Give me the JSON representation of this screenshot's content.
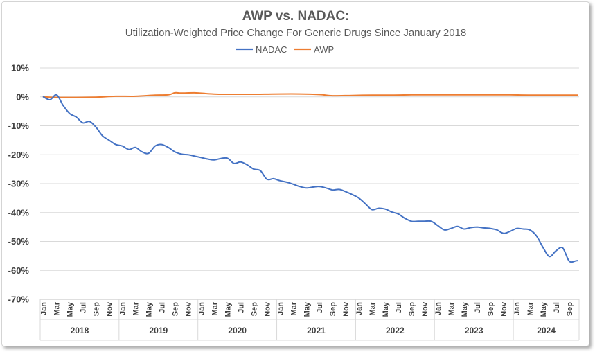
{
  "chart_data": {
    "type": "line",
    "title": "AWP vs. NADAC:",
    "subtitle": "Utilization-Weighted Price Change For Generic Drugs Since January 2018",
    "ylim": [
      -0.7,
      0.1
    ],
    "yticks": [
      0.1,
      0,
      -0.1,
      -0.2,
      -0.3,
      -0.4,
      -0.5,
      -0.6,
      -0.7
    ],
    "ytick_labels": [
      "10%",
      "0%",
      "-10%",
      "-20%",
      "-30%",
      "-40%",
      "-50%",
      "-60%",
      "-70%"
    ],
    "grid": true,
    "legend": "top",
    "month_labels": [
      "Jan",
      "Mar",
      "May",
      "Jul",
      "Sep",
      "Nov"
    ],
    "years": [
      "2018",
      "2019",
      "2020",
      "2021",
      "2022",
      "2023",
      "2024"
    ],
    "x_start": "2018-01",
    "x_end": "2024-10",
    "series": [
      {
        "name": "NADAC",
        "color": "#4472c4",
        "points": [
          [
            "2018-01",
            0.0
          ],
          [
            "2018-02",
            -0.01
          ],
          [
            "2018-03",
            0.007
          ],
          [
            "2018-04",
            -0.03
          ],
          [
            "2018-05",
            -0.058
          ],
          [
            "2018-06",
            -0.07
          ],
          [
            "2018-07",
            -0.09
          ],
          [
            "2018-08",
            -0.085
          ],
          [
            "2018-09",
            -0.105
          ],
          [
            "2018-10",
            -0.135
          ],
          [
            "2018-11",
            -0.15
          ],
          [
            "2018-12",
            -0.165
          ],
          [
            "2019-01",
            -0.17
          ],
          [
            "2019-02",
            -0.182
          ],
          [
            "2019-03",
            -0.175
          ],
          [
            "2019-04",
            -0.19
          ],
          [
            "2019-05",
            -0.195
          ],
          [
            "2019-06",
            -0.17
          ],
          [
            "2019-07",
            -0.165
          ],
          [
            "2019-08",
            -0.175
          ],
          [
            "2019-09",
            -0.19
          ],
          [
            "2019-10",
            -0.198
          ],
          [
            "2019-11",
            -0.2
          ],
          [
            "2019-12",
            -0.205
          ],
          [
            "2020-01",
            -0.21
          ],
          [
            "2020-02",
            -0.215
          ],
          [
            "2020-03",
            -0.218
          ],
          [
            "2020-04",
            -0.213
          ],
          [
            "2020-05",
            -0.212
          ],
          [
            "2020-06",
            -0.23
          ],
          [
            "2020-07",
            -0.225
          ],
          [
            "2020-08",
            -0.235
          ],
          [
            "2020-09",
            -0.25
          ],
          [
            "2020-10",
            -0.255
          ],
          [
            "2020-11",
            -0.285
          ],
          [
            "2020-12",
            -0.283
          ],
          [
            "2021-01",
            -0.29
          ],
          [
            "2021-02",
            -0.295
          ],
          [
            "2021-03",
            -0.302
          ],
          [
            "2021-04",
            -0.31
          ],
          [
            "2021-05",
            -0.315
          ],
          [
            "2021-06",
            -0.312
          ],
          [
            "2021-07",
            -0.31
          ],
          [
            "2021-08",
            -0.315
          ],
          [
            "2021-09",
            -0.322
          ],
          [
            "2021-10",
            -0.32
          ],
          [
            "2021-11",
            -0.328
          ],
          [
            "2021-12",
            -0.338
          ],
          [
            "2022-01",
            -0.35
          ],
          [
            "2022-02",
            -0.37
          ],
          [
            "2022-03",
            -0.39
          ],
          [
            "2022-04",
            -0.385
          ],
          [
            "2022-05",
            -0.388
          ],
          [
            "2022-06",
            -0.398
          ],
          [
            "2022-07",
            -0.405
          ],
          [
            "2022-08",
            -0.42
          ],
          [
            "2022-09",
            -0.43
          ],
          [
            "2022-10",
            -0.43
          ],
          [
            "2022-11",
            -0.43
          ],
          [
            "2022-12",
            -0.43
          ],
          [
            "2023-01",
            -0.445
          ],
          [
            "2023-02",
            -0.46
          ],
          [
            "2023-03",
            -0.455
          ],
          [
            "2023-04",
            -0.448
          ],
          [
            "2023-05",
            -0.457
          ],
          [
            "2023-06",
            -0.452
          ],
          [
            "2023-07",
            -0.45
          ],
          [
            "2023-08",
            -0.453
          ],
          [
            "2023-09",
            -0.455
          ],
          [
            "2023-10",
            -0.46
          ],
          [
            "2023-11",
            -0.472
          ],
          [
            "2023-12",
            -0.465
          ],
          [
            "2024-01",
            -0.455
          ],
          [
            "2024-02",
            -0.457
          ],
          [
            "2024-03",
            -0.46
          ],
          [
            "2024-04",
            -0.48
          ],
          [
            "2024-05",
            -0.52
          ],
          [
            "2024-06",
            -0.552
          ],
          [
            "2024-07",
            -0.532
          ],
          [
            "2024-08",
            -0.522
          ],
          [
            "2024-09",
            -0.568
          ],
          [
            "2024-10",
            -0.567
          ],
          [
            "2024-11",
            -0.566
          ]
        ]
      },
      {
        "name": "AWP",
        "color": "#ed7d31",
        "points": [
          [
            "2018-01",
            0.0
          ],
          [
            "2018-03",
            -0.002
          ],
          [
            "2018-06",
            -0.002
          ],
          [
            "2018-09",
            -0.001
          ],
          [
            "2018-12",
            0.002
          ],
          [
            "2019-03",
            0.002
          ],
          [
            "2019-06",
            0.006
          ],
          [
            "2019-08",
            0.007
          ],
          [
            "2019-09",
            0.014
          ],
          [
            "2019-10",
            0.013
          ],
          [
            "2019-12",
            0.014
          ],
          [
            "2020-02",
            0.011
          ],
          [
            "2020-04",
            0.009
          ],
          [
            "2020-07",
            0.009
          ],
          [
            "2020-10",
            0.009
          ],
          [
            "2021-01",
            0.01
          ],
          [
            "2021-04",
            0.01
          ],
          [
            "2021-07",
            0.008
          ],
          [
            "2021-09",
            0.004
          ],
          [
            "2021-12",
            0.005
          ],
          [
            "2022-03",
            0.006
          ],
          [
            "2022-06",
            0.006
          ],
          [
            "2022-09",
            0.007
          ],
          [
            "2022-12",
            0.007
          ],
          [
            "2023-03",
            0.007
          ],
          [
            "2023-06",
            0.007
          ],
          [
            "2023-09",
            0.007
          ],
          [
            "2023-12",
            0.007
          ],
          [
            "2024-03",
            0.006
          ],
          [
            "2024-06",
            0.006
          ],
          [
            "2024-09",
            0.006
          ],
          [
            "2024-11",
            0.006
          ]
        ]
      }
    ]
  }
}
